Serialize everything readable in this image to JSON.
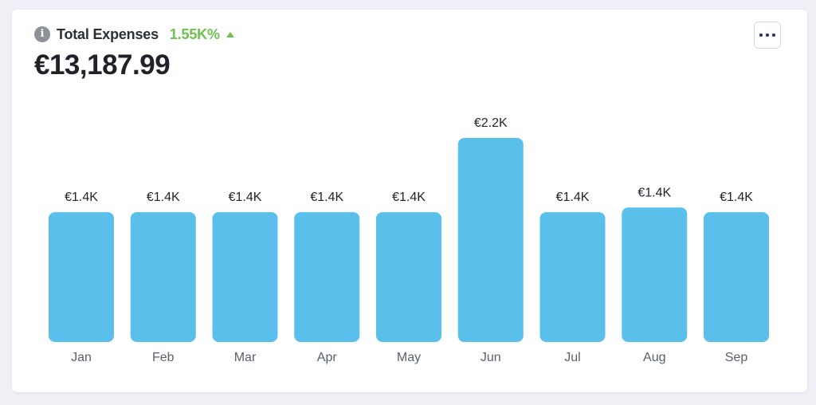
{
  "card": {
    "title": "Total Expenses",
    "change": "1.55K%",
    "change_direction": "up",
    "change_color": "#6cc24a",
    "total": "€13,187.99",
    "info_icon": "info-icon",
    "menu_icon": "more-horizontal-icon"
  },
  "chart_data": {
    "type": "bar",
    "categories": [
      "Jan",
      "Feb",
      "Mar",
      "Apr",
      "May",
      "Jun",
      "Jul",
      "Aug",
      "Sep"
    ],
    "values": [
      1400,
      1400,
      1400,
      1400,
      1400,
      2200,
      1400,
      1450,
      1400
    ],
    "data_labels": [
      "€1.4K",
      "€1.4K",
      "€1.4K",
      "€1.4K",
      "€1.4K",
      "€2.2K",
      "€1.4K",
      "€1.4K",
      "€1.4K"
    ],
    "bar_color": "#5bbfeb",
    "ylim": [
      0,
      2200
    ],
    "grid": false,
    "legend": "none"
  }
}
